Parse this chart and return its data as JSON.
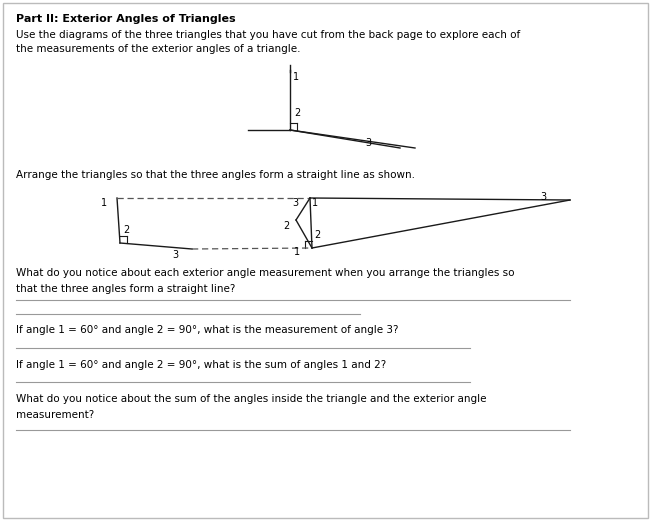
{
  "title": "Part II: Exterior Angles of Triangles",
  "intro_line1": "Use the diagrams of the three triangles that you have cut from the back page to explore each of",
  "intro_line2": "the measurements of the exterior angles of a triangle.",
  "arrange_text": "Arrange the triangles so that the three angles form a straight line as shown.",
  "question1_line1": "What do you notice about each exterior angle measurement when you arrange the triangles so",
  "question1_line2": "that the three angles form a straight line?",
  "question2": "If angle 1 = 60° and angle 2 = 90°, what is the measurement of angle 3?",
  "question3": "If angle 1 = 60° and angle 2 = 90°, what is the sum of angles 1 and 2?",
  "question4_line1": "What do you notice about the sum of the angles inside the triangle and the exterior angle",
  "question4_line2": "measurement?",
  "bg_color": "#ffffff",
  "text_color": "#000000"
}
